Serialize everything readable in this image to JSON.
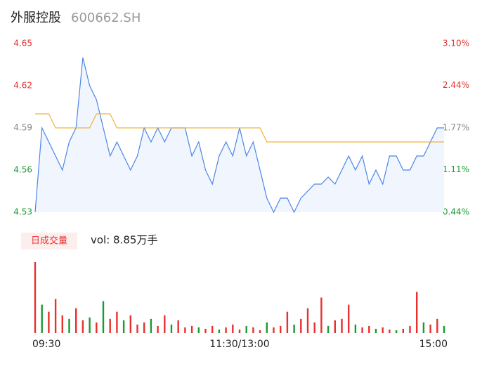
{
  "header": {
    "name": "外服控股",
    "code": "600662.SH"
  },
  "volume_badge": "日成交量",
  "volume_text": "vol: 8.85万手",
  "chart_data": [
    {
      "type": "line",
      "x": [
        0,
        4,
        8,
        12,
        16,
        20,
        24,
        28,
        32,
        36,
        40,
        44,
        48,
        52,
        56,
        60,
        64,
        68,
        72,
        76,
        80,
        84,
        88,
        92,
        96,
        100,
        104,
        108,
        112,
        116,
        120,
        124,
        128,
        132,
        136,
        140,
        144,
        148,
        152,
        156,
        160,
        164,
        168,
        172,
        176,
        180,
        184,
        188,
        192,
        196,
        200,
        204,
        208,
        212,
        216,
        220,
        224,
        228,
        232,
        236,
        240
      ],
      "xlim": [
        0,
        240
      ],
      "xticks": [
        {
          "value": 0,
          "label": "09:30"
        },
        {
          "value": 120,
          "label": "11:30/13:00"
        },
        {
          "value": 240,
          "label": "15:00"
        }
      ],
      "ylim": [
        4.53,
        4.65
      ],
      "yticks": [
        4.65,
        4.62,
        4.59,
        4.56,
        4.53
      ],
      "ytick_colors": [
        "#e8312e",
        "#e8312e",
        "#888888",
        "#1a9b32",
        "#1a9b32"
      ],
      "y2lim": [
        0.44,
        3.1
      ],
      "y2ticks": [
        {
          "value": 3.1,
          "label": "3.10%"
        },
        {
          "value": 2.44,
          "label": "2.44%"
        },
        {
          "value": 1.77,
          "label": "1.77%"
        },
        {
          "value": 1.11,
          "label": "1.11%"
        },
        {
          "value": 0.44,
          "label": "0.44%"
        }
      ],
      "grid": false,
      "series": [
        {
          "color": "#4a86e8",
          "values": [
            4.53,
            4.59,
            4.58,
            4.57,
            4.56,
            4.58,
            4.59,
            4.64,
            4.62,
            4.61,
            4.59,
            4.57,
            4.58,
            4.57,
            4.56,
            4.57,
            4.59,
            4.58,
            4.59,
            4.58,
            4.59,
            4.59,
            4.59,
            4.57,
            4.58,
            4.56,
            4.55,
            4.57,
            4.58,
            4.57,
            4.59,
            4.57,
            4.58,
            4.56,
            4.54,
            4.53,
            4.54,
            4.54,
            4.53,
            4.54,
            4.545,
            4.55,
            4.55,
            4.555,
            4.55,
            4.56,
            4.57,
            4.56,
            4.57,
            4.55,
            4.56,
            4.55,
            4.57,
            4.57,
            4.56,
            4.56,
            4.57,
            4.57,
            4.58,
            4.59,
            4.59
          ]
        },
        {
          "color": "#f0b43c",
          "values": [
            4.6,
            4.6,
            4.6,
            4.59,
            4.59,
            4.59,
            4.59,
            4.59,
            4.59,
            4.6,
            4.6,
            4.6,
            4.59,
            4.59,
            4.59,
            4.59,
            4.59,
            4.59,
            4.59,
            4.59,
            4.59,
            4.59,
            4.59,
            4.59,
            4.59,
            4.59,
            4.59,
            4.59,
            4.59,
            4.59,
            4.59,
            4.59,
            4.59,
            4.59,
            4.58,
            4.58,
            4.58,
            4.58,
            4.58,
            4.58,
            4.58,
            4.58,
            4.58,
            4.58,
            4.58,
            4.58,
            4.58,
            4.58,
            4.58,
            4.58,
            4.58,
            4.58,
            4.58,
            4.58,
            4.58,
            4.58,
            4.58,
            4.58,
            4.58,
            4.58,
            4.58
          ]
        }
      ]
    },
    {
      "type": "bar",
      "x": [
        0,
        4,
        8,
        12,
        16,
        20,
        24,
        28,
        32,
        36,
        40,
        44,
        48,
        52,
        56,
        60,
        64,
        68,
        72,
        76,
        80,
        84,
        88,
        92,
        96,
        100,
        104,
        108,
        112,
        116,
        120,
        124,
        128,
        132,
        136,
        140,
        144,
        148,
        152,
        156,
        160,
        164,
        168,
        172,
        176,
        180,
        184,
        188,
        192,
        196,
        200,
        204,
        208,
        212,
        216,
        220,
        224,
        228,
        232,
        236,
        240
      ],
      "xlim": [
        0,
        240
      ],
      "ylim": [
        0,
        100
      ],
      "values": [
        100,
        40,
        30,
        48,
        25,
        20,
        35,
        18,
        22,
        15,
        45,
        20,
        30,
        18,
        25,
        12,
        15,
        20,
        10,
        25,
        12,
        18,
        8,
        10,
        8,
        6,
        10,
        5,
        8,
        12,
        5,
        10,
        8,
        4,
        15,
        8,
        10,
        30,
        12,
        20,
        35,
        15,
        50,
        10,
        18,
        20,
        40,
        12,
        8,
        10,
        6,
        8,
        5,
        4,
        6,
        10,
        58,
        15,
        12,
        20,
        10
      ],
      "colors": [
        "#e8312e",
        "#1a9b32",
        "#e8312e",
        "#e8312e",
        "#e8312e",
        "#1a9b32",
        "#e8312e",
        "#e8312e",
        "#1a9b32",
        "#e8312e",
        "#1a9b32",
        "#e8312e",
        "#e8312e",
        "#1a9b32",
        "#e8312e",
        "#e8312e",
        "#e8312e",
        "#1a9b32",
        "#e8312e",
        "#e8312e",
        "#1a9b32",
        "#e8312e",
        "#e8312e",
        "#e8312e",
        "#1a9b32",
        "#e8312e",
        "#e8312e",
        "#1a9b32",
        "#e8312e",
        "#e8312e",
        "#e8312e",
        "#1a9b32",
        "#e8312e",
        "#e8312e",
        "#1a9b32",
        "#e8312e",
        "#e8312e",
        "#e8312e",
        "#1a9b32",
        "#e8312e",
        "#e8312e",
        "#e8312e",
        "#e8312e",
        "#1a9b32",
        "#e8312e",
        "#e8312e",
        "#e8312e",
        "#1a9b32",
        "#e8312e",
        "#e8312e",
        "#1a9b32",
        "#e8312e",
        "#e8312e",
        "#1a9b32",
        "#e8312e",
        "#e8312e",
        "#e8312e",
        "#1a9b32",
        "#e8312e",
        "#e8312e",
        "#1a9b32"
      ]
    }
  ]
}
